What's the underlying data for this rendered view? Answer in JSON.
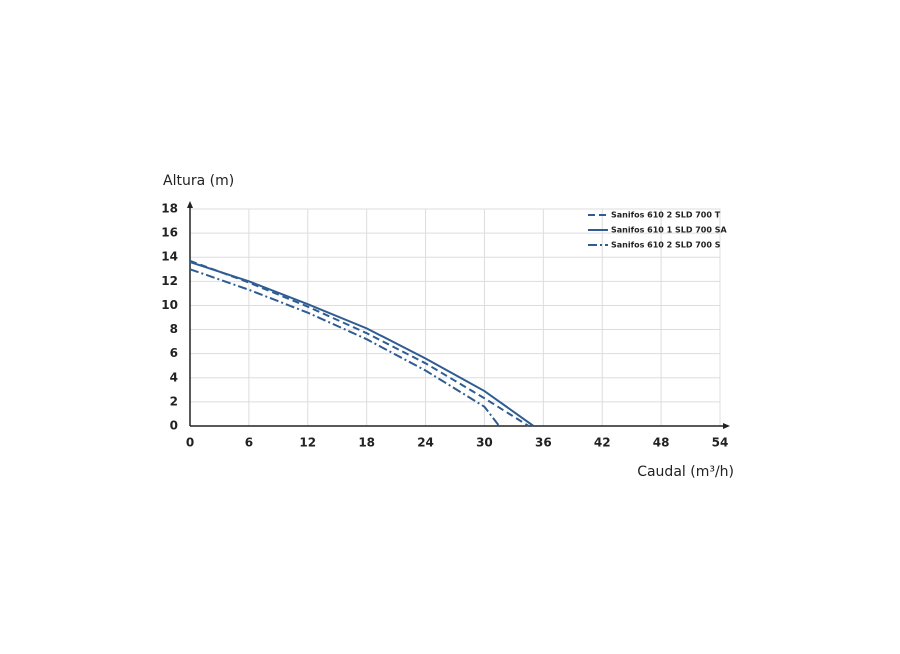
{
  "chart_data": {
    "type": "line",
    "ylabel": "Altura (m)",
    "xlabel": "Caudal (m³/h)",
    "xlim": [
      0,
      54
    ],
    "xticks": [
      0,
      6,
      12,
      18,
      24,
      30,
      36,
      42,
      48,
      54
    ],
    "ylim": [
      0,
      18
    ],
    "yticks": [
      0,
      2,
      4,
      6,
      8,
      10,
      12,
      14,
      16,
      18
    ],
    "grid": true,
    "legend": "upper right",
    "series": [
      {
        "name": "Sanifos 610 2 SLD 700 T",
        "color": "#2f5d93",
        "style": "dashed",
        "x": [
          0,
          6,
          12,
          18,
          24,
          30,
          34.5
        ],
        "values": [
          13.7,
          11.9,
          9.9,
          7.7,
          5.2,
          2.3,
          0
        ]
      },
      {
        "name": "Sanifos 610 1 SLD 700 SA",
        "color": "#2f5d93",
        "style": "solid",
        "x": [
          0,
          6,
          12,
          18,
          24,
          30,
          35
        ],
        "values": [
          13.6,
          12,
          10.1,
          8.1,
          5.6,
          2.9,
          0
        ]
      },
      {
        "name": "Sanifos 610 2 SLD 700 S",
        "color": "#2f5d93",
        "style": "dashdot",
        "x": [
          0,
          6,
          12,
          18,
          24,
          30,
          31.5
        ],
        "values": [
          13,
          11.3,
          9.4,
          7.2,
          4.6,
          1.6,
          0
        ]
      }
    ]
  }
}
